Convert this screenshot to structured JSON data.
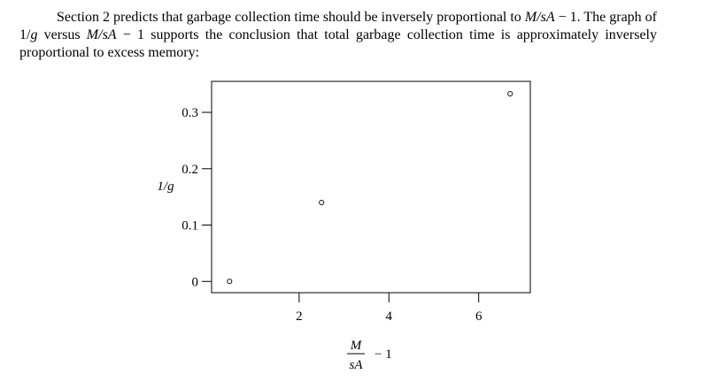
{
  "paragraph": {
    "part1": "Section 2 predicts that garbage collection time should be inversely proportional to ",
    "math1": "M/sA",
    "part2": " − 1. The graph of 1/",
    "math2": "g",
    "part3": " versus ",
    "math3": "M/sA",
    "part4": " − 1 supports the conclusion that total garbage collection time is approximately inversely proportional to excess memory:"
  },
  "chart_data": {
    "type": "scatter",
    "ylabel": "1/g",
    "xlabel_numerator": "M",
    "xlabel_denominator": "sA",
    "xlabel_suffix": "− 1",
    "x_ticks": [
      2,
      4,
      6
    ],
    "y_ticks": [
      0,
      0.1,
      0.2,
      0.3
    ],
    "x_tick_labels": [
      "2",
      "4",
      "6"
    ],
    "y_tick_labels": [
      "0",
      "0.1",
      "0.2",
      "0.3"
    ],
    "xlim": [
      0.05,
      7.15
    ],
    "ylim": [
      -0.02,
      0.355
    ],
    "points": [
      {
        "x": 0.45,
        "y": 0.0
      },
      {
        "x": 2.5,
        "y": 0.14
      },
      {
        "x": 6.7,
        "y": 0.333
      }
    ],
    "grid": false
  }
}
